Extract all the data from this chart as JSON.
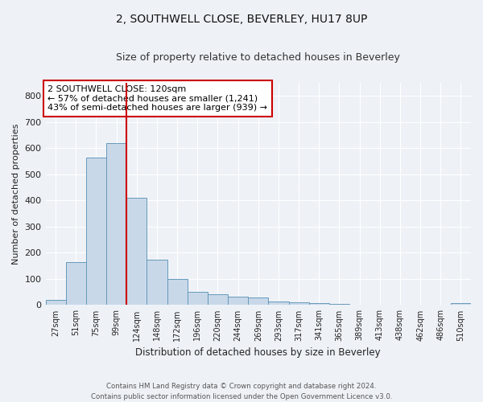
{
  "title1": "2, SOUTHWELL CLOSE, BEVERLEY, HU17 8UP",
  "title2": "Size of property relative to detached houses in Beverley",
  "xlabel": "Distribution of detached houses by size in Beverley",
  "ylabel": "Number of detached properties",
  "categories": [
    "27sqm",
    "51sqm",
    "75sqm",
    "99sqm",
    "124sqm",
    "148sqm",
    "172sqm",
    "196sqm",
    "220sqm",
    "244sqm",
    "269sqm",
    "293sqm",
    "317sqm",
    "341sqm",
    "365sqm",
    "389sqm",
    "413sqm",
    "438sqm",
    "462sqm",
    "486sqm",
    "510sqm"
  ],
  "values": [
    20,
    165,
    565,
    620,
    410,
    172,
    100,
    52,
    40,
    33,
    28,
    14,
    10,
    6,
    4,
    2,
    0,
    0,
    0,
    0,
    7
  ],
  "bar_color": "#c8d8e8",
  "bar_edge_color": "#6699bb",
  "vline_color": "#cc0000",
  "annotation_text": "2 SOUTHWELL CLOSE: 120sqm\n← 57% of detached houses are smaller (1,241)\n43% of semi-detached houses are larger (939) →",
  "annotation_box_color": "#ffffff",
  "annotation_box_edge": "#cc0000",
  "bg_color": "#eef2f7",
  "grid_color": "#ffffff",
  "footer": "Contains HM Land Registry data © Crown copyright and database right 2024.\nContains public sector information licensed under the Open Government Licence v3.0.",
  "ylim": [
    0,
    850
  ],
  "yticks": [
    0,
    100,
    200,
    300,
    400,
    500,
    600,
    700,
    800
  ]
}
